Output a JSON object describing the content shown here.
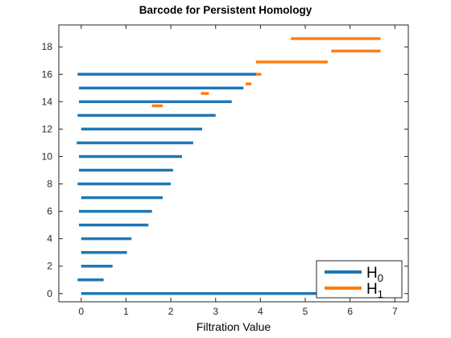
{
  "chart_data": {
    "type": "bar",
    "subtype": "barcode",
    "title": "Barcode for Persistent Homology",
    "xlabel": "Filtration Value",
    "ylabel": "",
    "xlim": [
      -0.5,
      7.3
    ],
    "ylim": [
      -0.6,
      19.6
    ],
    "xticks": [
      0,
      1,
      2,
      3,
      4,
      5,
      6,
      7
    ],
    "yticks": [
      0,
      2,
      4,
      6,
      8,
      10,
      12,
      14,
      16,
      18
    ],
    "grid": false,
    "legend": {
      "position": "bottom-right"
    },
    "series": [
      {
        "name": "H0",
        "label_main": "H",
        "label_sub": "0",
        "color": "#1f77b4",
        "bars": [
          {
            "index": 0,
            "birth": 0.0,
            "death": 6.7
          },
          {
            "index": 1,
            "birth": -0.08,
            "death": 0.5
          },
          {
            "index": 2,
            "birth": 0.0,
            "death": 0.7
          },
          {
            "index": 3,
            "birth": 0.0,
            "death": 1.02
          },
          {
            "index": 4,
            "birth": 0.0,
            "death": 1.12
          },
          {
            "index": 5,
            "birth": -0.05,
            "death": 1.5
          },
          {
            "index": 6,
            "birth": -0.05,
            "death": 1.58
          },
          {
            "index": 7,
            "birth": 0.0,
            "death": 1.82
          },
          {
            "index": 8,
            "birth": -0.08,
            "death": 2.0
          },
          {
            "index": 9,
            "birth": -0.05,
            "death": 2.05
          },
          {
            "index": 10,
            "birth": -0.05,
            "death": 2.25
          },
          {
            "index": 11,
            "birth": -0.1,
            "death": 2.5
          },
          {
            "index": 12,
            "birth": 0.0,
            "death": 2.7
          },
          {
            "index": 13,
            "birth": -0.08,
            "death": 3.0
          },
          {
            "index": 14,
            "birth": -0.05,
            "death": 3.36
          },
          {
            "index": 15,
            "birth": -0.05,
            "death": 3.62
          },
          {
            "index": 16,
            "birth": -0.08,
            "death": 4.0
          }
        ]
      },
      {
        "name": "H1",
        "label_main": "H",
        "label_sub": "1",
        "color": "#ff7f0e",
        "bars": [
          {
            "index": 13.7,
            "birth": 1.58,
            "death": 1.82
          },
          {
            "index": 14.6,
            "birth": 2.67,
            "death": 2.85
          },
          {
            "index": 15.3,
            "birth": 3.67,
            "death": 3.8
          },
          {
            "index": 16.0,
            "birth": 3.9,
            "death": 4.02
          },
          {
            "index": 16.9,
            "birth": 3.9,
            "death": 5.5
          },
          {
            "index": 17.7,
            "birth": 5.58,
            "death": 6.68
          },
          {
            "index": 18.6,
            "birth": 4.68,
            "death": 6.68
          }
        ]
      }
    ]
  }
}
